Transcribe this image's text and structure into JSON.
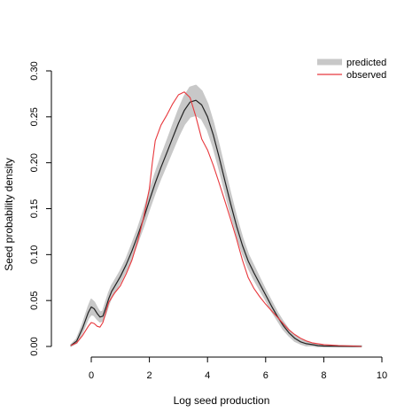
{
  "chart_data": {
    "type": "line",
    "xlabel": "Log seed production",
    "ylabel": "Seed probability density",
    "xlim": [
      -1.0,
      10.0
    ],
    "ylim": [
      0.0,
      0.3
    ],
    "xticks": [
      0,
      2,
      4,
      6,
      8,
      10
    ],
    "yticks": [
      0.0,
      0.05,
      0.1,
      0.15,
      0.2,
      0.25,
      0.3
    ],
    "xtick_labels": [
      "0",
      "2",
      "4",
      "6",
      "8",
      "10"
    ],
    "ytick_labels": [
      "0.00",
      "0.05",
      "0.10",
      "0.15",
      "0.20",
      "0.25",
      "0.30"
    ],
    "grid": false,
    "legend_position": "top-right",
    "series": [
      {
        "name": "predicted",
        "color": "#222222",
        "band_color": "#c8c8c8",
        "x": [
          -0.7,
          -0.5,
          -0.3,
          -0.1,
          0.0,
          0.1,
          0.2,
          0.3,
          0.4,
          0.5,
          0.6,
          0.7,
          0.8,
          1.0,
          1.2,
          1.4,
          1.6,
          1.8,
          2.0,
          2.2,
          2.4,
          2.6,
          2.8,
          3.0,
          3.2,
          3.4,
          3.6,
          3.8,
          4.0,
          4.2,
          4.4,
          4.6,
          4.8,
          5.0,
          5.2,
          5.4,
          5.6,
          5.8,
          6.0,
          6.2,
          6.4,
          6.6,
          6.8,
          7.0,
          7.2,
          7.4,
          7.6,
          7.8,
          8.0,
          8.5,
          9.0,
          9.3
        ],
        "y": [
          0.001,
          0.006,
          0.02,
          0.037,
          0.043,
          0.041,
          0.036,
          0.032,
          0.033,
          0.042,
          0.052,
          0.06,
          0.065,
          0.076,
          0.089,
          0.104,
          0.121,
          0.139,
          0.159,
          0.178,
          0.195,
          0.211,
          0.227,
          0.243,
          0.257,
          0.266,
          0.268,
          0.263,
          0.25,
          0.23,
          0.206,
          0.18,
          0.155,
          0.131,
          0.11,
          0.093,
          0.08,
          0.068,
          0.056,
          0.044,
          0.033,
          0.023,
          0.015,
          0.009,
          0.005,
          0.003,
          0.002,
          0.001,
          0.0005,
          0.0002,
          0.0001,
          0.0
        ],
        "band_half_width": [
          0.0005,
          0.002,
          0.004,
          0.006,
          0.008,
          0.007,
          0.006,
          0.005,
          0.005,
          0.006,
          0.006,
          0.006,
          0.006,
          0.006,
          0.006,
          0.007,
          0.007,
          0.008,
          0.009,
          0.01,
          0.011,
          0.012,
          0.013,
          0.014,
          0.015,
          0.016,
          0.016,
          0.015,
          0.014,
          0.013,
          0.012,
          0.011,
          0.01,
          0.009,
          0.008,
          0.007,
          0.007,
          0.006,
          0.005,
          0.005,
          0.004,
          0.004,
          0.003,
          0.003,
          0.002,
          0.002,
          0.001,
          0.001,
          0.001,
          0.0005,
          0.0005,
          0.0005
        ]
      },
      {
        "name": "observed",
        "color": "#e8383d",
        "x": [
          -0.7,
          -0.5,
          -0.3,
          -0.1,
          0.0,
          0.1,
          0.2,
          0.3,
          0.4,
          0.5,
          0.6,
          0.8,
          1.0,
          1.2,
          1.4,
          1.6,
          1.8,
          2.0,
          2.1,
          2.2,
          2.4,
          2.6,
          2.8,
          3.0,
          3.2,
          3.4,
          3.6,
          3.8,
          4.0,
          4.2,
          4.4,
          4.6,
          4.8,
          5.0,
          5.2,
          5.4,
          5.6,
          5.8,
          6.0,
          6.2,
          6.4,
          6.6,
          6.8,
          7.0,
          7.2,
          7.4,
          7.6,
          7.8,
          8.0,
          8.5,
          9.0,
          9.3
        ],
        "y": [
          0.001,
          0.004,
          0.012,
          0.022,
          0.026,
          0.025,
          0.022,
          0.021,
          0.026,
          0.037,
          0.048,
          0.058,
          0.066,
          0.079,
          0.094,
          0.115,
          0.14,
          0.172,
          0.2,
          0.224,
          0.241,
          0.252,
          0.264,
          0.274,
          0.277,
          0.271,
          0.25,
          0.226,
          0.214,
          0.197,
          0.178,
          0.158,
          0.138,
          0.117,
          0.094,
          0.075,
          0.063,
          0.054,
          0.046,
          0.039,
          0.032,
          0.025,
          0.018,
          0.013,
          0.009,
          0.006,
          0.004,
          0.003,
          0.002,
          0.001,
          0.0005,
          0.0
        ]
      }
    ]
  }
}
